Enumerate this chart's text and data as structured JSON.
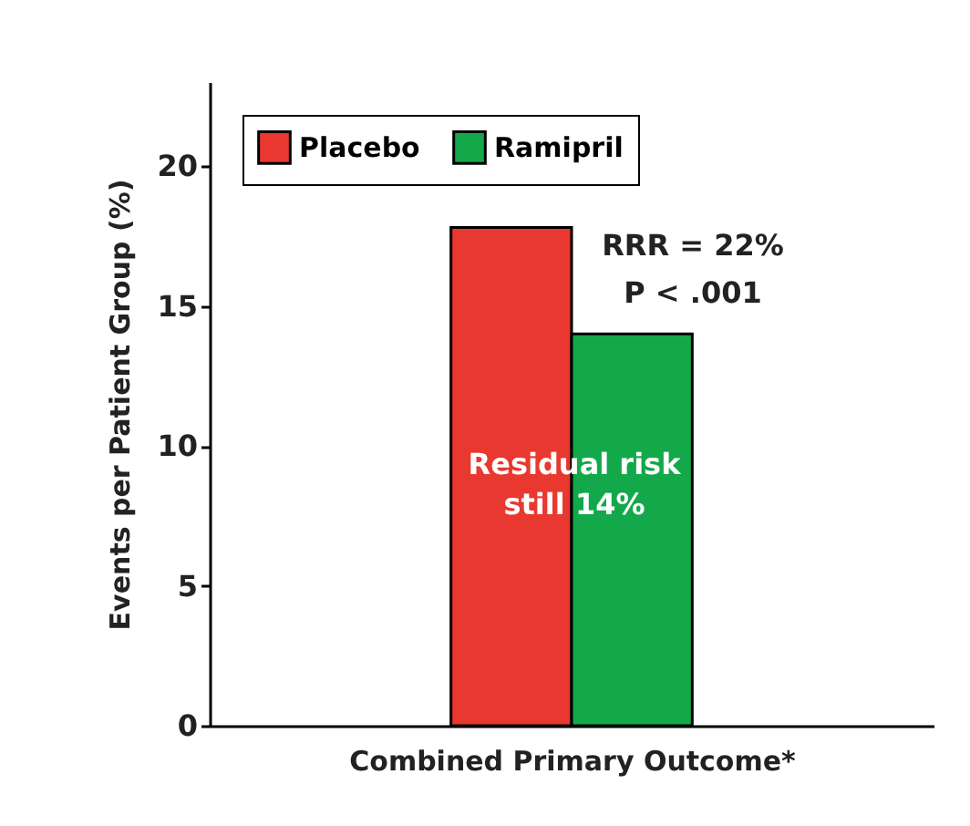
{
  "chart_data": {
    "type": "bar",
    "xlabel": "Combined Primary Outcome*",
    "ylabel": "Events per Patient Group (%)",
    "categories": [
      null
    ],
    "series": [
      {
        "name": "Placebo",
        "color": "#e8382f",
        "values": [
          17.8
        ]
      },
      {
        "name": "Ramipril",
        "color": "#13a84a",
        "values": [
          14.0
        ]
      }
    ],
    "ylim": [
      0,
      23
    ],
    "yticks": [
      0,
      5,
      10,
      15,
      20
    ],
    "legend": "top left",
    "grid": false,
    "annotations": [
      "RRR = 22%",
      "P < .001",
      "Residual risk still 14%"
    ]
  }
}
